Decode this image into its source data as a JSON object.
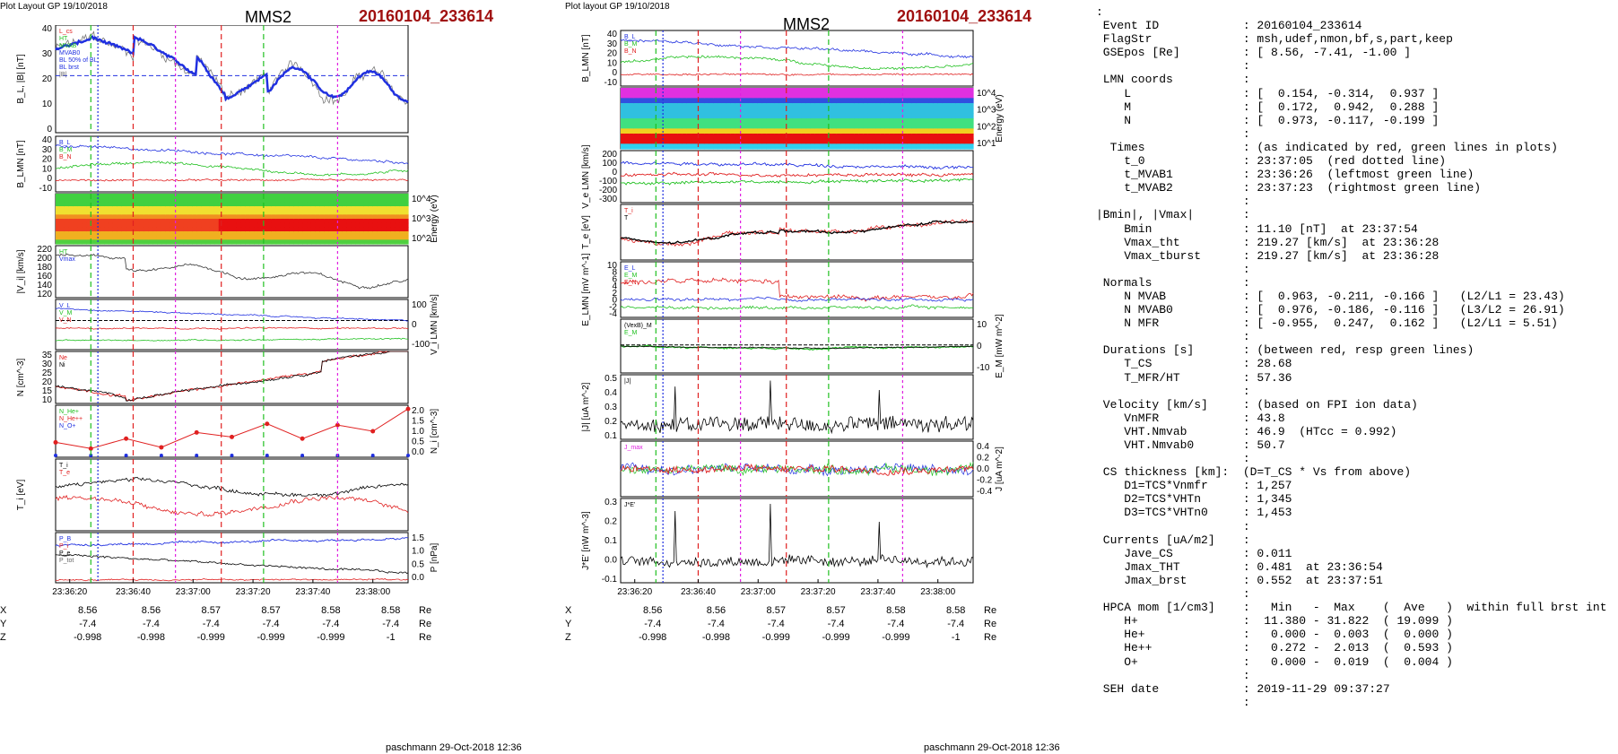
{
  "left": {
    "header": "Plot Layout GP 19/10/2018",
    "title": "MMS2",
    "event": "20160104_233614",
    "footer": "paschmann 29-Oct-2018 12:36",
    "time_ticks": [
      "23:36:20",
      "23:36:40",
      "23:37:00",
      "23:37:20",
      "23:37:40",
      "23:38:00"
    ],
    "panels": [
      {
        "ylabel": "B_L, |B| [nT]",
        "legend": [
          "L_cs",
          "HT",
          "MVAB",
          "MVAB0",
          "BL 50% of BL",
          "BL brst",
          "|B|"
        ],
        "ticks_left": [
          "40",
          "30",
          "20",
          "10",
          "0"
        ]
      },
      {
        "ylabel": "B_LMN [nT]",
        "legend": [
          "B_L",
          "B_M",
          "B_N"
        ],
        "ticks_left": [
          "40",
          "30",
          "20",
          "10",
          "0",
          "-10"
        ]
      },
      {
        "ylabel": "Energy (eV)",
        "ticks_right": [
          "10^4",
          "10^3",
          "10^2"
        ]
      },
      {
        "ylabel": "|V_i| [km/s]",
        "legend": [
          "HT",
          "Vmax"
        ],
        "ticks_left": [
          "220",
          "200",
          "180",
          "160",
          "140",
          "120"
        ]
      },
      {
        "ylabel": "V_i LMN [km/s]",
        "legend": [
          "V_L",
          "V_M",
          "V_N"
        ],
        "ticks_right": [
          "100",
          "0",
          "-100"
        ]
      },
      {
        "ylabel": "N [cm^-3]",
        "legend": [
          "Ne",
          "Ni"
        ],
        "ticks_left": [
          "35",
          "30",
          "25",
          "20",
          "15",
          "10"
        ]
      },
      {
        "ylabel": "N_i [cm^-3]",
        "legend": [
          "N_He+",
          "N_He++",
          "N_O+"
        ],
        "ticks_right": [
          "2.0",
          "1.5",
          "1.0",
          "0.5",
          "0.0"
        ]
      },
      {
        "ylabel": "T_i [eV]",
        "legend": [
          "T_i",
          "T_e"
        ]
      },
      {
        "ylabel": "P [nPa]",
        "legend": [
          "P_B",
          "P_i",
          "P_e",
          "P_tot"
        ],
        "ticks_right": [
          "1.5",
          "1.0",
          "0.5",
          "0.0"
        ]
      }
    ],
    "ephem": {
      "rows": [
        {
          "label": "X",
          "values": [
            "8.56",
            "8.56",
            "8.57",
            "8.57",
            "8.58",
            "8.58"
          ],
          "unit": "Re"
        },
        {
          "label": "Y",
          "values": [
            "-7.4",
            "-7.4",
            "-7.4",
            "-7.4",
            "-7.4",
            "-7.4"
          ],
          "unit": "Re"
        },
        {
          "label": "Z",
          "values": [
            "-0.998",
            "-0.998",
            "-0.999",
            "-0.999",
            "-0.999",
            "-1"
          ],
          "unit": "Re"
        }
      ]
    }
  },
  "middle": {
    "header": "Plot layout GP 19/10/2018",
    "title": "MMS2",
    "event": "20160104_233614",
    "footer": "paschmann 29-Oct-2018 12:36",
    "time_ticks": [
      "23:36:20",
      "23:36:40",
      "23:37:00",
      "23:37:20",
      "23:37:40",
      "23:38:00"
    ],
    "panels": [
      {
        "ylabel": "B_LMN [nT]",
        "legend": [
          "B_L",
          "B_M",
          "B_N"
        ],
        "ticks_left": [
          "40",
          "30",
          "20",
          "10",
          "0",
          "-10"
        ]
      },
      {
        "ylabel": "Energy (eV)",
        "ticks_right": [
          "10^4",
          "10^3",
          "10^2",
          "10^1"
        ]
      },
      {
        "ylabel": "V_e LMN [km/s]",
        "ticks_left": [
          "200",
          "100",
          "0",
          "-100",
          "-200",
          "-300"
        ]
      },
      {
        "ylabel": "T_e [eV]",
        "legend": [
          "T_i",
          "T"
        ]
      },
      {
        "ylabel": "E_LMN [mV m^-1]",
        "legend": [
          "E_L",
          "E_M",
          "E_N"
        ],
        "ticks_left": [
          "10",
          "8",
          "6",
          "4",
          "2",
          "0",
          "-2",
          "-4"
        ]
      },
      {
        "ylabel": "E_M [mW m^-2]",
        "legend": [
          "(VexB)_M",
          "E_M"
        ],
        "ticks_right": [
          "10",
          "0",
          "-10"
        ]
      },
      {
        "ylabel": "|J| [uA m^-2]",
        "legend": [
          "|J|"
        ],
        "ticks_left": [
          "0.5",
          "0.4",
          "0.3",
          "0.2",
          "0.1"
        ]
      },
      {
        "ylabel": "J [uA m^-2]",
        "legend": [
          "J_max"
        ],
        "ticks_right": [
          "0.4",
          "0.2",
          "0.0",
          "-0.2",
          "-0.4"
        ]
      },
      {
        "ylabel": "J*E' [nW m^-3]",
        "legend": [
          "J*E'"
        ],
        "ticks_left": [
          "0.3",
          "0.2",
          "0.1",
          "0.0",
          "-0.1"
        ]
      }
    ],
    "ephem": {
      "rows": [
        {
          "label": "X",
          "values": [
            "8.56",
            "8.56",
            "8.57",
            "8.57",
            "8.58",
            "8.58"
          ],
          "unit": "Re"
        },
        {
          "label": "Y",
          "values": [
            "-7.4",
            "-7.4",
            "-7.4",
            "-7.4",
            "-7.4",
            "-7.4"
          ],
          "unit": "Re"
        },
        {
          "label": "Z",
          "values": [
            "-0.998",
            "-0.998",
            "-0.999",
            "-0.999",
            "-0.999",
            "-1"
          ],
          "unit": "Re"
        }
      ]
    }
  },
  "info_lines": [
    ":",
    " Event ID            : 20160104_233614",
    " FlagStr             : msh,udef,nmon,bf,s,part,keep",
    " GSEpos [Re]         : [ 8.56, -7.41, -1.00 ]",
    "                     :",
    " LMN coords          :",
    "    L                : [  0.154, -0.314,  0.937 ]",
    "    M                : [  0.172,  0.942,  0.288 ]",
    "    N                : [  0.973, -0.117, -0.199 ]",
    "                     :",
    "  Times              : (as indicated by red, green lines in plots)",
    "    t_0              : 23:37:05  (red dotted line)",
    "    t_MVAB1          : 23:36:26  (leftmost green line)",
    "    t_MVAB2          : 23:37:23  (rightmost green line)",
    "                     :",
    "|Bmin|, |Vmax|       :",
    "    Bmin             : 11.10 [nT]  at 23:37:54",
    "    Vmax_tht         : 219.27 [km/s]  at 23:36:28",
    "    Vmax_tburst      : 219.27 [km/s]  at 23:36:28",
    "                     :",
    " Normals             :",
    "    N MVAB           : [  0.963, -0.211, -0.166 ]   (L2/L1 = 23.43)",
    "    N MVAB0          : [  0.976, -0.186, -0.116 ]   (L3/L2 = 26.91)",
    "    N MFR            : [ -0.955,  0.247,  0.162 ]   (L2/L1 = 5.51)",
    "                     :",
    " Durations [s]       : (between red, resp green lines)",
    "    T_CS             : 28.68",
    "    T_MFR/HT         : 57.36",
    "                     :",
    " Velocity [km/s]     : (based on FPI ion data)",
    "    VnMFR            : 43.8",
    "    VHT.Nmvab        : 46.9  (HTcc = 0.992)",
    "    VHT.Nmvab0       : 50.7",
    "                     :",
    " CS thickness [km]:  (D=T_CS * Vs from above)",
    "    D1=TCS*Vnmfr     : 1,257",
    "    D2=TCS*VHTn      : 1,345",
    "    D3=TCS*VHTn0     : 1,453",
    "                     :",
    " Currents [uA/m2]    :",
    "    Jave_CS          : 0.011",
    "    Jmax_THT         : 0.481  at 23:36:54",
    "    Jmax_brst        : 0.552  at 23:37:51",
    "                     :",
    " HPCA mom [1/cm3]    :   Min   -  Max    (  Ave   )  within full brst int",
    "    H+               :  11.380 - 31.822  ( 19.099 )",
    "    He+              :   0.000 -  0.003  (  0.000 )",
    "    He++             :   0.272 -  2.013  (  0.593 )",
    "    O+               :   0.000 -  0.019  (  0.004 )",
    "                     :",
    " SEH date            : 2019-11-29 09:37:27",
    "                     :"
  ],
  "colors": {
    "red": "#e02020",
    "green": "#20c020",
    "blue": "#2030e0",
    "black": "#000000",
    "magenta": "#e020e0",
    "event": "#a01010"
  }
}
